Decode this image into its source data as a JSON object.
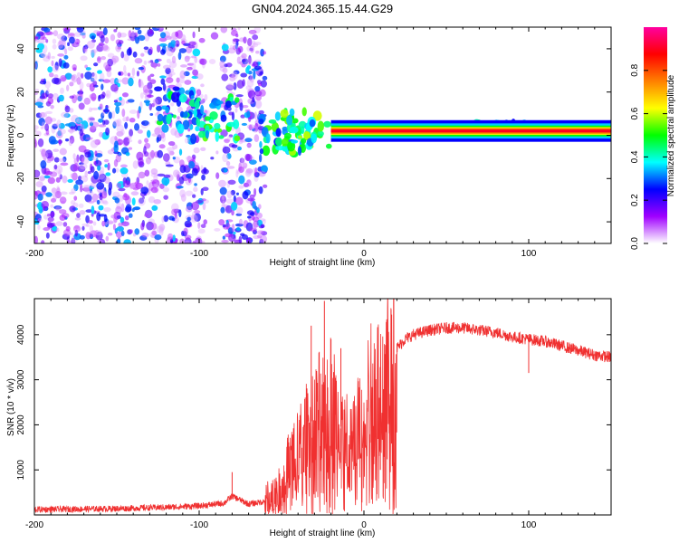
{
  "title": "GN04.2024.365.15.44.G29",
  "chart_data": [
    {
      "type": "heatmap",
      "xlabel": "Height of straight line (km)",
      "ylabel": "Frequency (Hz)",
      "xlim": [
        -200,
        150
      ],
      "ylim": [
        -50,
        50
      ],
      "xticks": [
        -200,
        -100,
        0,
        100
      ],
      "yticks": [
        -40,
        -20,
        0,
        20,
        40
      ],
      "colorbar": {
        "label": "Normalized spectral amplitude",
        "range": [
          0,
          1
        ],
        "ticks": [
          0.0,
          0.2,
          0.4,
          0.6,
          0.8
        ],
        "colors": [
          "#ffffff",
          "#a000ff",
          "#0000ff",
          "#00ffff",
          "#00ff00",
          "#ffff00",
          "#ff8000",
          "#ff0000",
          "#ff00a0"
        ]
      },
      "carrier": {
        "frequency_hz": 2,
        "x_range": [
          -20,
          150
        ],
        "peak_amplitude": 0.9
      },
      "noise_region_x": [
        -200,
        -60
      ],
      "noise_gap_x": [
        -96,
        -86
      ],
      "features": [
        {
          "x": -112,
          "y": 12,
          "amplitude": 0.45
        },
        {
          "x": -90,
          "y": 8,
          "amplitude": 0.5
        },
        {
          "x": -50,
          "y": 0,
          "amplitude": 0.5
        },
        {
          "x": -35,
          "y": 2,
          "amplitude": 0.55
        },
        {
          "x": 0,
          "y": 2,
          "amplitude": 0.75
        },
        {
          "x": 80,
          "y": 3,
          "amplitude": 0.45
        },
        {
          "x": 95,
          "y": 2,
          "amplitude": 0.5
        }
      ]
    },
    {
      "type": "line",
      "xlabel": "Height of straight line (km)",
      "ylabel": "SNR (10 * v/v)",
      "xlim": [
        -200,
        150
      ],
      "ylim": [
        0,
        4800
      ],
      "xticks": [
        -200,
        -100,
        0,
        100
      ],
      "yticks": [
        1000,
        2000,
        3000,
        4000
      ],
      "color": "#f03030",
      "profile": {
        "x": [
          -200,
          -150,
          -120,
          -100,
          -85,
          -80,
          -70,
          -60,
          -50,
          -45,
          -40,
          -35,
          -30,
          -25,
          -20,
          -15,
          -10,
          -5,
          0,
          5,
          10,
          15,
          20,
          25,
          30,
          40,
          50,
          60,
          70,
          80,
          90,
          100,
          110,
          120,
          130,
          140,
          150
        ],
        "y": [
          120,
          140,
          170,
          200,
          260,
          420,
          240,
          300,
          700,
          1300,
          1500,
          1900,
          2200,
          2500,
          2700,
          2000,
          1800,
          2000,
          2500,
          2800,
          3000,
          3400,
          3700,
          3900,
          4000,
          4100,
          4150,
          4150,
          4100,
          4050,
          3950,
          3900,
          3850,
          3750,
          3650,
          3550,
          3500
        ]
      },
      "spikes": [
        {
          "x": -80,
          "y": 950
        },
        {
          "x": -32,
          "y": 4200
        },
        {
          "x": -24,
          "y": 4750
        },
        {
          "x": -20,
          "y": 3900
        },
        {
          "x": -14,
          "y": 3700
        },
        {
          "x": 10,
          "y": 1000
        },
        {
          "x": 100,
          "y": 3150
        }
      ]
    }
  ]
}
